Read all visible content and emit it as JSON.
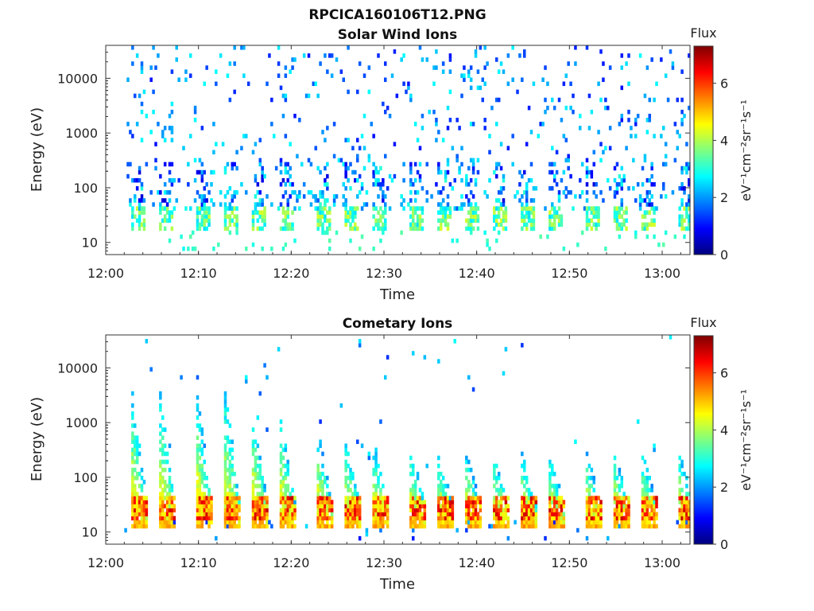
{
  "figure": {
    "title": "RPCICA160106T12.PNG"
  },
  "chart_data": [
    {
      "type": "heatmap",
      "title": "Solar Wind Ions",
      "xlabel": "Time",
      "ylabel": "Energy (eV)",
      "x_ticks": [
        "12:00",
        "12:10",
        "12:20",
        "12:30",
        "12:40",
        "12:50",
        "13:00"
      ],
      "xlim": [
        "12:00",
        "13:03"
      ],
      "data_start": "12:02",
      "data_end": "13:03",
      "y_scale": "log",
      "y_ticks": [
        "10",
        "100",
        "1000",
        "10000"
      ],
      "ylim": [
        6,
        40000
      ],
      "colorbar_title": "Flux",
      "colorbar_label": "eV⁻¹cm⁻²sr⁻¹s⁻¹",
      "colorbar_ticks": [
        "0",
        "2",
        "4",
        "6"
      ],
      "colorbar_range": [
        0,
        7.3
      ],
      "colormap": "jet",
      "description": "sparse noise across all energies with recurring low-energy enhancements near 20–40 eV",
      "pulse_times": [
        "12:03",
        "12:06",
        "12:10",
        "12:13",
        "12:16",
        "12:19",
        "12:23",
        "12:26",
        "12:29",
        "12:33",
        "12:36",
        "12:39",
        "12:42",
        "12:45",
        "12:48",
        "12:52",
        "12:55",
        "12:58",
        "13:02"
      ]
    },
    {
      "type": "heatmap",
      "title": "Cometary Ions",
      "xlabel": "Time",
      "ylabel": "Energy (eV)",
      "x_ticks": [
        "12:00",
        "12:10",
        "12:20",
        "12:30",
        "12:40",
        "12:50",
        "13:00"
      ],
      "xlim": [
        "12:00",
        "13:03"
      ],
      "data_start": "12:02",
      "data_end": "13:03",
      "y_scale": "log",
      "y_ticks": [
        "10",
        "100",
        "1000",
        "10000"
      ],
      "ylim": [
        6,
        40000
      ],
      "colorbar_title": "Flux",
      "colorbar_label": "eV⁻¹cm⁻²sr⁻¹s⁻¹",
      "colorbar_ticks": [
        "0",
        "2",
        "4",
        "6"
      ],
      "colorbar_range": [
        0,
        7.3
      ],
      "colormap": "jet",
      "description": "periodic dispersed ion bursts with peak flux near 15–30 eV",
      "pulse_times": [
        "12:03",
        "12:06",
        "12:10",
        "12:13",
        "12:16",
        "12:19",
        "12:23",
        "12:26",
        "12:29",
        "12:33",
        "12:36",
        "12:39",
        "12:42",
        "12:45",
        "12:48",
        "12:52",
        "12:55",
        "12:58",
        "13:02"
      ],
      "pulse_peak_energy_ev": [
        4000,
        4000,
        4000,
        5000,
        2000,
        1500,
        800,
        600,
        500,
        400,
        300,
        300,
        300,
        300,
        300,
        300,
        300,
        300,
        300
      ],
      "peak_flux": 6.8
    }
  ]
}
